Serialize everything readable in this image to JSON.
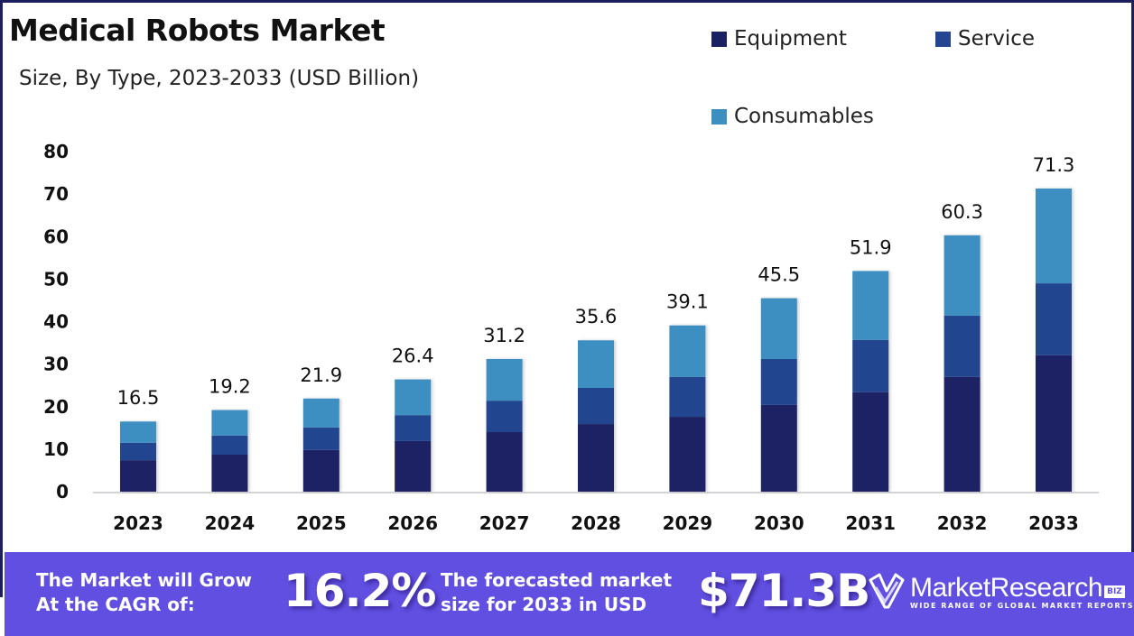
{
  "header": {
    "title": "Medical Robots Market",
    "subtitle": "Size, By Type, 2023-2033 (USD Billion)"
  },
  "legend": [
    {
      "label": "Equipment",
      "color": "#1a2163"
    },
    {
      "label": "Service",
      "color": "#24458f"
    },
    {
      "label": "Consumables",
      "color": "#3d8fc1"
    }
  ],
  "chart_data": {
    "type": "bar",
    "stacked": true,
    "title": "Medical Robots Market",
    "subtitle": "Size, By Type, 2023-2033 (USD Billion)",
    "xlabel": "",
    "ylabel": "",
    "ylim": [
      0,
      80
    ],
    "yticks": [
      0,
      10,
      20,
      30,
      40,
      50,
      60,
      70,
      80
    ],
    "grid": false,
    "legend_position": "top-right",
    "categories": [
      "2023",
      "2024",
      "2025",
      "2026",
      "2027",
      "2028",
      "2029",
      "2030",
      "2031",
      "2032",
      "2033"
    ],
    "series": [
      {
        "name": "Equipment",
        "color": "#1a2163",
        "values": [
          7.4,
          8.7,
          9.8,
          11.9,
          14.0,
          15.9,
          17.6,
          20.4,
          23.4,
          27.0,
          32.1
        ]
      },
      {
        "name": "Service",
        "color": "#24458f",
        "values": [
          4.1,
          4.5,
          5.3,
          6.1,
          7.4,
          8.5,
          9.4,
          10.8,
          12.3,
          14.4,
          16.9
        ]
      },
      {
        "name": "Consumables",
        "color": "#3d8fc1",
        "values": [
          5.0,
          6.0,
          6.8,
          8.4,
          9.8,
          11.2,
          12.1,
          14.3,
          16.2,
          18.9,
          22.3
        ]
      }
    ],
    "totals": [
      16.5,
      19.2,
      21.9,
      26.4,
      31.2,
      35.6,
      39.1,
      45.5,
      51.9,
      60.3,
      71.3
    ],
    "total_labels": [
      "16.5",
      "19.2",
      "21.9",
      "26.4",
      "31.2",
      "35.6",
      "39.1",
      "45.5",
      "51.9",
      "60.3",
      "71.3"
    ]
  },
  "banner": {
    "cagr_text_line1": "The Market will Grow",
    "cagr_text_line2": "At the CAGR of:",
    "cagr_value": "16.2%",
    "forecast_text_line1": "The forecasted market",
    "forecast_text_line2": "size for 2033 in USD",
    "forecast_value": "$71.3B",
    "background_color": "#604fe0"
  },
  "logo": {
    "name": "MarketResearch",
    "badge": "BIZ",
    "tagline": "WIDE RANGE OF GLOBAL MARKET REPORTS",
    "icon": "checkmark-shield-icon"
  }
}
